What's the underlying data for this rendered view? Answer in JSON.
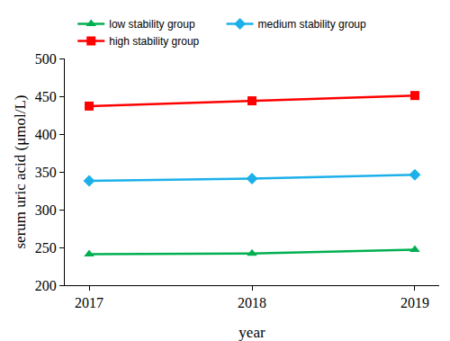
{
  "chart_data": {
    "type": "line",
    "x_label": "year",
    "y_label": "serum uric acid (μmol/L)",
    "categories": [
      "2017",
      "2018",
      "2019"
    ],
    "series": [
      {
        "name": "low stability group",
        "color": "#00b050",
        "marker": "triangle",
        "line_style": "solid",
        "values": [
          241,
          242,
          247
        ]
      },
      {
        "name": "medium stability group",
        "color": "#1cb0ea",
        "marker": "diamond",
        "line_style": "solid",
        "values": [
          338,
          341,
          346
        ]
      },
      {
        "name": "high stability group",
        "color": "#ff0000",
        "marker": "square",
        "line_style": "solid",
        "values": [
          437,
          444,
          451
        ]
      }
    ],
    "ylim": [
      200,
      500
    ],
    "yticks": [
      200,
      250,
      300,
      350,
      400,
      450,
      500
    ],
    "grid": false,
    "legend": "top"
  }
}
